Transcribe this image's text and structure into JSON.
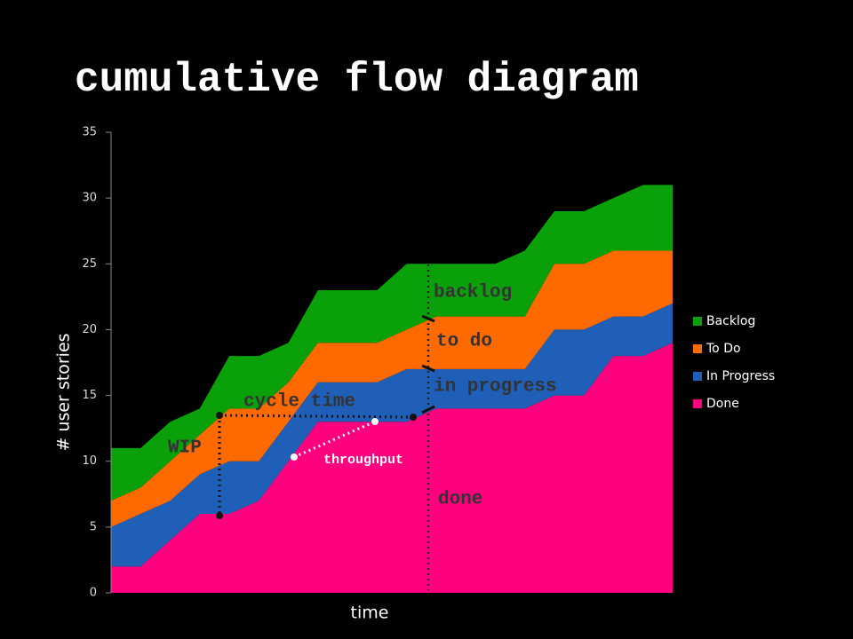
{
  "chart_data": {
    "type": "stacked_area",
    "title": "cumulative flow diagram",
    "y_label": "# user stories",
    "x_label": "time",
    "categories": [
      null,
      null,
      null,
      null,
      null,
      null,
      null,
      null,
      null,
      null,
      null,
      null,
      null,
      null,
      null,
      null,
      null,
      null,
      null,
      null
    ],
    "series": [
      {
        "name": "Done",
        "color": "#ff007f",
        "values": [
          2,
          2,
          4,
          6,
          6,
          7,
          10,
          13,
          13,
          13,
          13,
          14,
          14,
          14,
          14,
          15,
          15,
          18,
          18,
          19
        ]
      },
      {
        "name": "In Progress",
        "color": "#1f5fb8",
        "values": [
          3,
          4,
          3,
          3,
          4,
          3,
          3,
          3,
          3,
          3,
          4,
          3,
          3,
          3,
          3,
          5,
          5,
          3,
          3,
          3
        ]
      },
      {
        "name": "To Do",
        "color": "#ff6a00",
        "values": [
          2,
          2,
          3,
          3,
          4,
          4,
          3,
          3,
          3,
          3,
          3,
          4,
          4,
          4,
          4,
          5,
          5,
          5,
          5,
          4
        ]
      },
      {
        "name": "Backlog",
        "color": "#0aa00a",
        "values": [
          4,
          3,
          3,
          2,
          4,
          4,
          3,
          4,
          4,
          4,
          5,
          4,
          4,
          4,
          5,
          4,
          4,
          4,
          5,
          5
        ]
      }
    ],
    "ylim": [
      0,
      35
    ],
    "yticks": [
      0,
      5,
      10,
      15,
      20,
      25,
      30,
      35
    ],
    "legend": "right",
    "annotations": [
      "backlog",
      "to do",
      "in progress",
      "done",
      "cycle time",
      "WIP",
      "throughput"
    ]
  }
}
